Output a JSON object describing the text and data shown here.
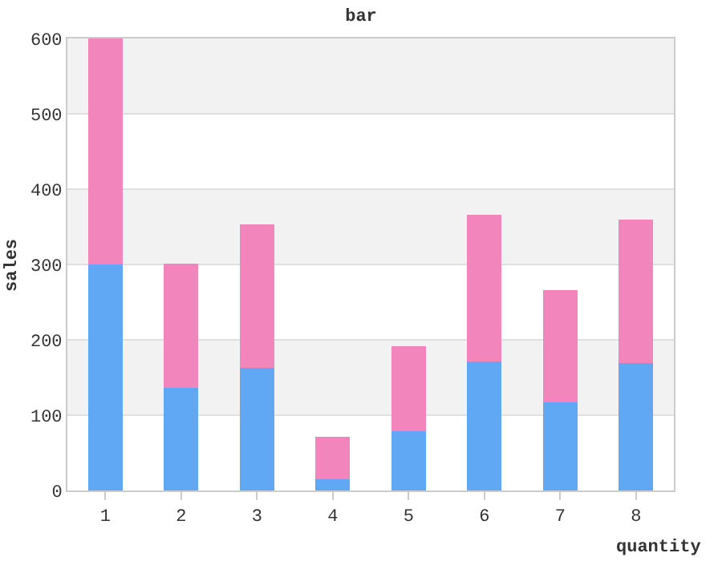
{
  "chart_data": {
    "type": "bar",
    "title": "bar",
    "xlabel": "quantity",
    "ylabel": "sales",
    "categories": [
      "1",
      "2",
      "3",
      "4",
      "5",
      "6",
      "7",
      "8"
    ],
    "series": [
      {
        "color": "#60a8f4",
        "values": [
          300,
          136,
          163,
          15,
          79,
          171,
          117,
          169
        ]
      },
      {
        "color": "#f285bb",
        "values": [
          300,
          165,
          190,
          56,
          113,
          195,
          149,
          191
        ]
      }
    ],
    "stacked": true,
    "ylim": [
      0,
      600
    ],
    "yticks": [
      0,
      100,
      200,
      300,
      400,
      500,
      600
    ],
    "grid": "y"
  }
}
